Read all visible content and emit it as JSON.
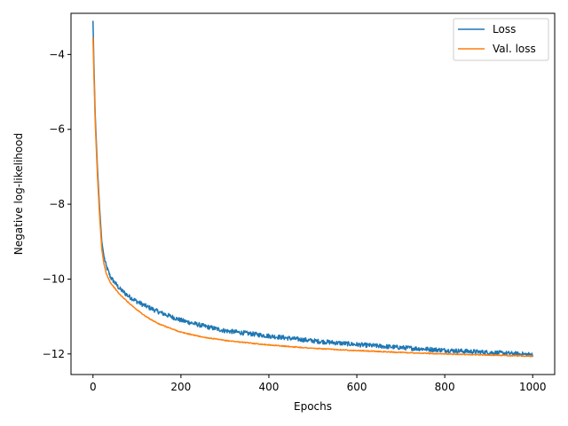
{
  "chart_data": {
    "type": "line",
    "title": "",
    "xlabel": "Epochs",
    "ylabel": "Negative log-likelihood",
    "xlim": [
      -50,
      1050
    ],
    "ylim": [
      -12.55,
      -2.9
    ],
    "xticks": [
      0,
      200,
      400,
      600,
      800,
      1000
    ],
    "xtick_labels": [
      "0",
      "200",
      "400",
      "600",
      "800",
      "1000"
    ],
    "yticks": [
      -12,
      -10,
      -8,
      -6,
      -4
    ],
    "ytick_labels": [
      "−12",
      "−10",
      "−8",
      "−6",
      "−4"
    ],
    "grid": false,
    "legend": "top-right",
    "series": [
      {
        "name": "Loss",
        "color": "#1f77b4",
        "noise": 0.06,
        "x": [
          0,
          2,
          5,
          10,
          15,
          20,
          25,
          30,
          40,
          50,
          60,
          80,
          100,
          120,
          150,
          200,
          250,
          300,
          400,
          500,
          600,
          700,
          800,
          900,
          1000
        ],
        "y": [
          -3.1,
          -4.2,
          -5.6,
          -7.0,
          -8.1,
          -9.0,
          -9.4,
          -9.65,
          -9.95,
          -10.1,
          -10.25,
          -10.45,
          -10.6,
          -10.72,
          -10.88,
          -11.1,
          -11.25,
          -11.38,
          -11.52,
          -11.65,
          -11.75,
          -11.83,
          -11.9,
          -11.96,
          -12.02
        ]
      },
      {
        "name": "Val. loss",
        "color": "#ff7f0e",
        "noise": 0.012,
        "x": [
          0,
          2,
          5,
          10,
          15,
          20,
          25,
          30,
          40,
          50,
          60,
          80,
          100,
          120,
          150,
          200,
          250,
          300,
          400,
          500,
          600,
          700,
          800,
          900,
          1000
        ],
        "y": [
          -3.55,
          -4.5,
          -5.8,
          -7.2,
          -8.3,
          -9.2,
          -9.6,
          -9.85,
          -10.1,
          -10.25,
          -10.4,
          -10.62,
          -10.82,
          -11.0,
          -11.2,
          -11.42,
          -11.55,
          -11.64,
          -11.76,
          -11.85,
          -11.91,
          -11.96,
          -12.0,
          -12.03,
          -12.06
        ]
      }
    ]
  }
}
